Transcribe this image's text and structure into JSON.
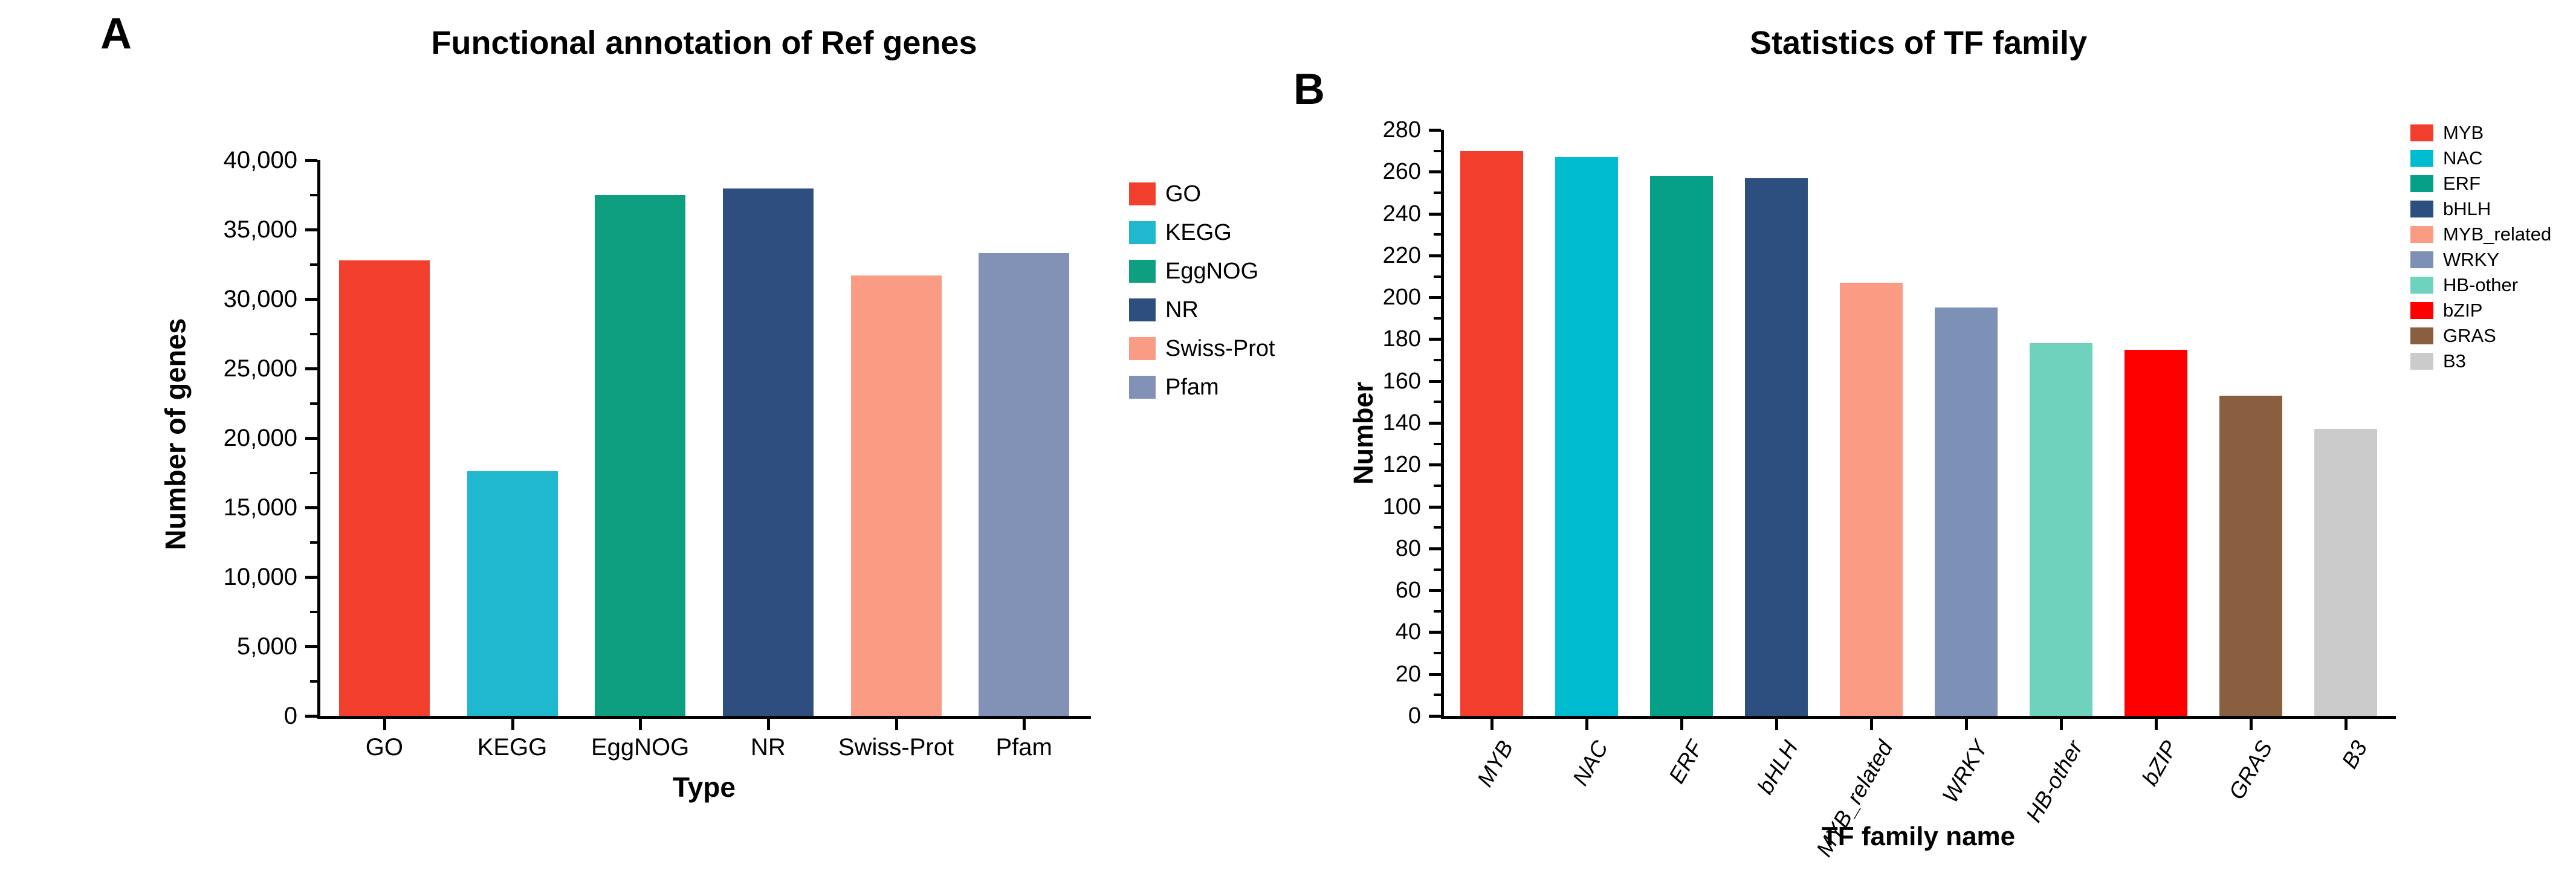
{
  "figure": {
    "background": "#ffffff",
    "axis_color": "#000000",
    "text_color": "#000000"
  },
  "chart_data": [
    {
      "type": "bar",
      "panel_label": "A",
      "title": "Functional annotation of Ref genes",
      "xlabel": "Type",
      "ylabel": "Number of genes",
      "ylim": [
        0,
        40000
      ],
      "grid": false,
      "legend_position": "right",
      "yticks": [
        {
          "value": 0,
          "label": "0"
        },
        {
          "value": 5000,
          "label": "5,000"
        },
        {
          "value": 10000,
          "label": "10,000"
        },
        {
          "value": 15000,
          "label": "15,000"
        },
        {
          "value": 20000,
          "label": "20,000"
        },
        {
          "value": 25000,
          "label": "25,000"
        },
        {
          "value": 30000,
          "label": "30,000"
        },
        {
          "value": 35000,
          "label": "35,000"
        },
        {
          "value": 40000,
          "label": "40,000"
        }
      ],
      "categories": [
        "GO",
        "KEGG",
        "EggNOG",
        "NR",
        "Swiss-Prot",
        "Pfam"
      ],
      "values": [
        32800,
        17600,
        37500,
        37950,
        31700,
        33300
      ],
      "colors": [
        "#F23E2C",
        "#1FB8CE",
        "#0D9F80",
        "#2D4E7E",
        "#FA9C84",
        "#8292B6"
      ]
    },
    {
      "type": "bar",
      "panel_label": "B",
      "title": "Statistics of TF family",
      "xlabel": "TF family name",
      "ylabel": "Number",
      "ylim": [
        0,
        280
      ],
      "grid": false,
      "legend_position": "right",
      "yticks": [
        {
          "value": 0,
          "label": "0"
        },
        {
          "value": 20,
          "label": "20"
        },
        {
          "value": 40,
          "label": "40"
        },
        {
          "value": 60,
          "label": "60"
        },
        {
          "value": 80,
          "label": "80"
        },
        {
          "value": 100,
          "label": "100"
        },
        {
          "value": 120,
          "label": "120"
        },
        {
          "value": 140,
          "label": "140"
        },
        {
          "value": 160,
          "label": "160"
        },
        {
          "value": 180,
          "label": "180"
        },
        {
          "value": 200,
          "label": "200"
        },
        {
          "value": 220,
          "label": "220"
        },
        {
          "value": 240,
          "label": "240"
        },
        {
          "value": 260,
          "label": "260"
        },
        {
          "value": 280,
          "label": "280"
        }
      ],
      "categories": [
        "MYB",
        "NAC",
        "ERF",
        "bHLH",
        "MYB_related",
        "WRKY",
        "HB-other",
        "bZIP",
        "GRAS",
        "B3"
      ],
      "values": [
        270,
        267,
        258,
        257,
        207,
        195,
        178,
        175,
        153,
        137
      ],
      "colors": [
        "#F23E2C",
        "#00BCD1",
        "#069F87",
        "#2D4F80",
        "#FA9C84",
        "#7C91B5",
        "#6FD2BD",
        "#FE0000",
        "#8A5F40",
        "#CBCBCB"
      ]
    }
  ]
}
